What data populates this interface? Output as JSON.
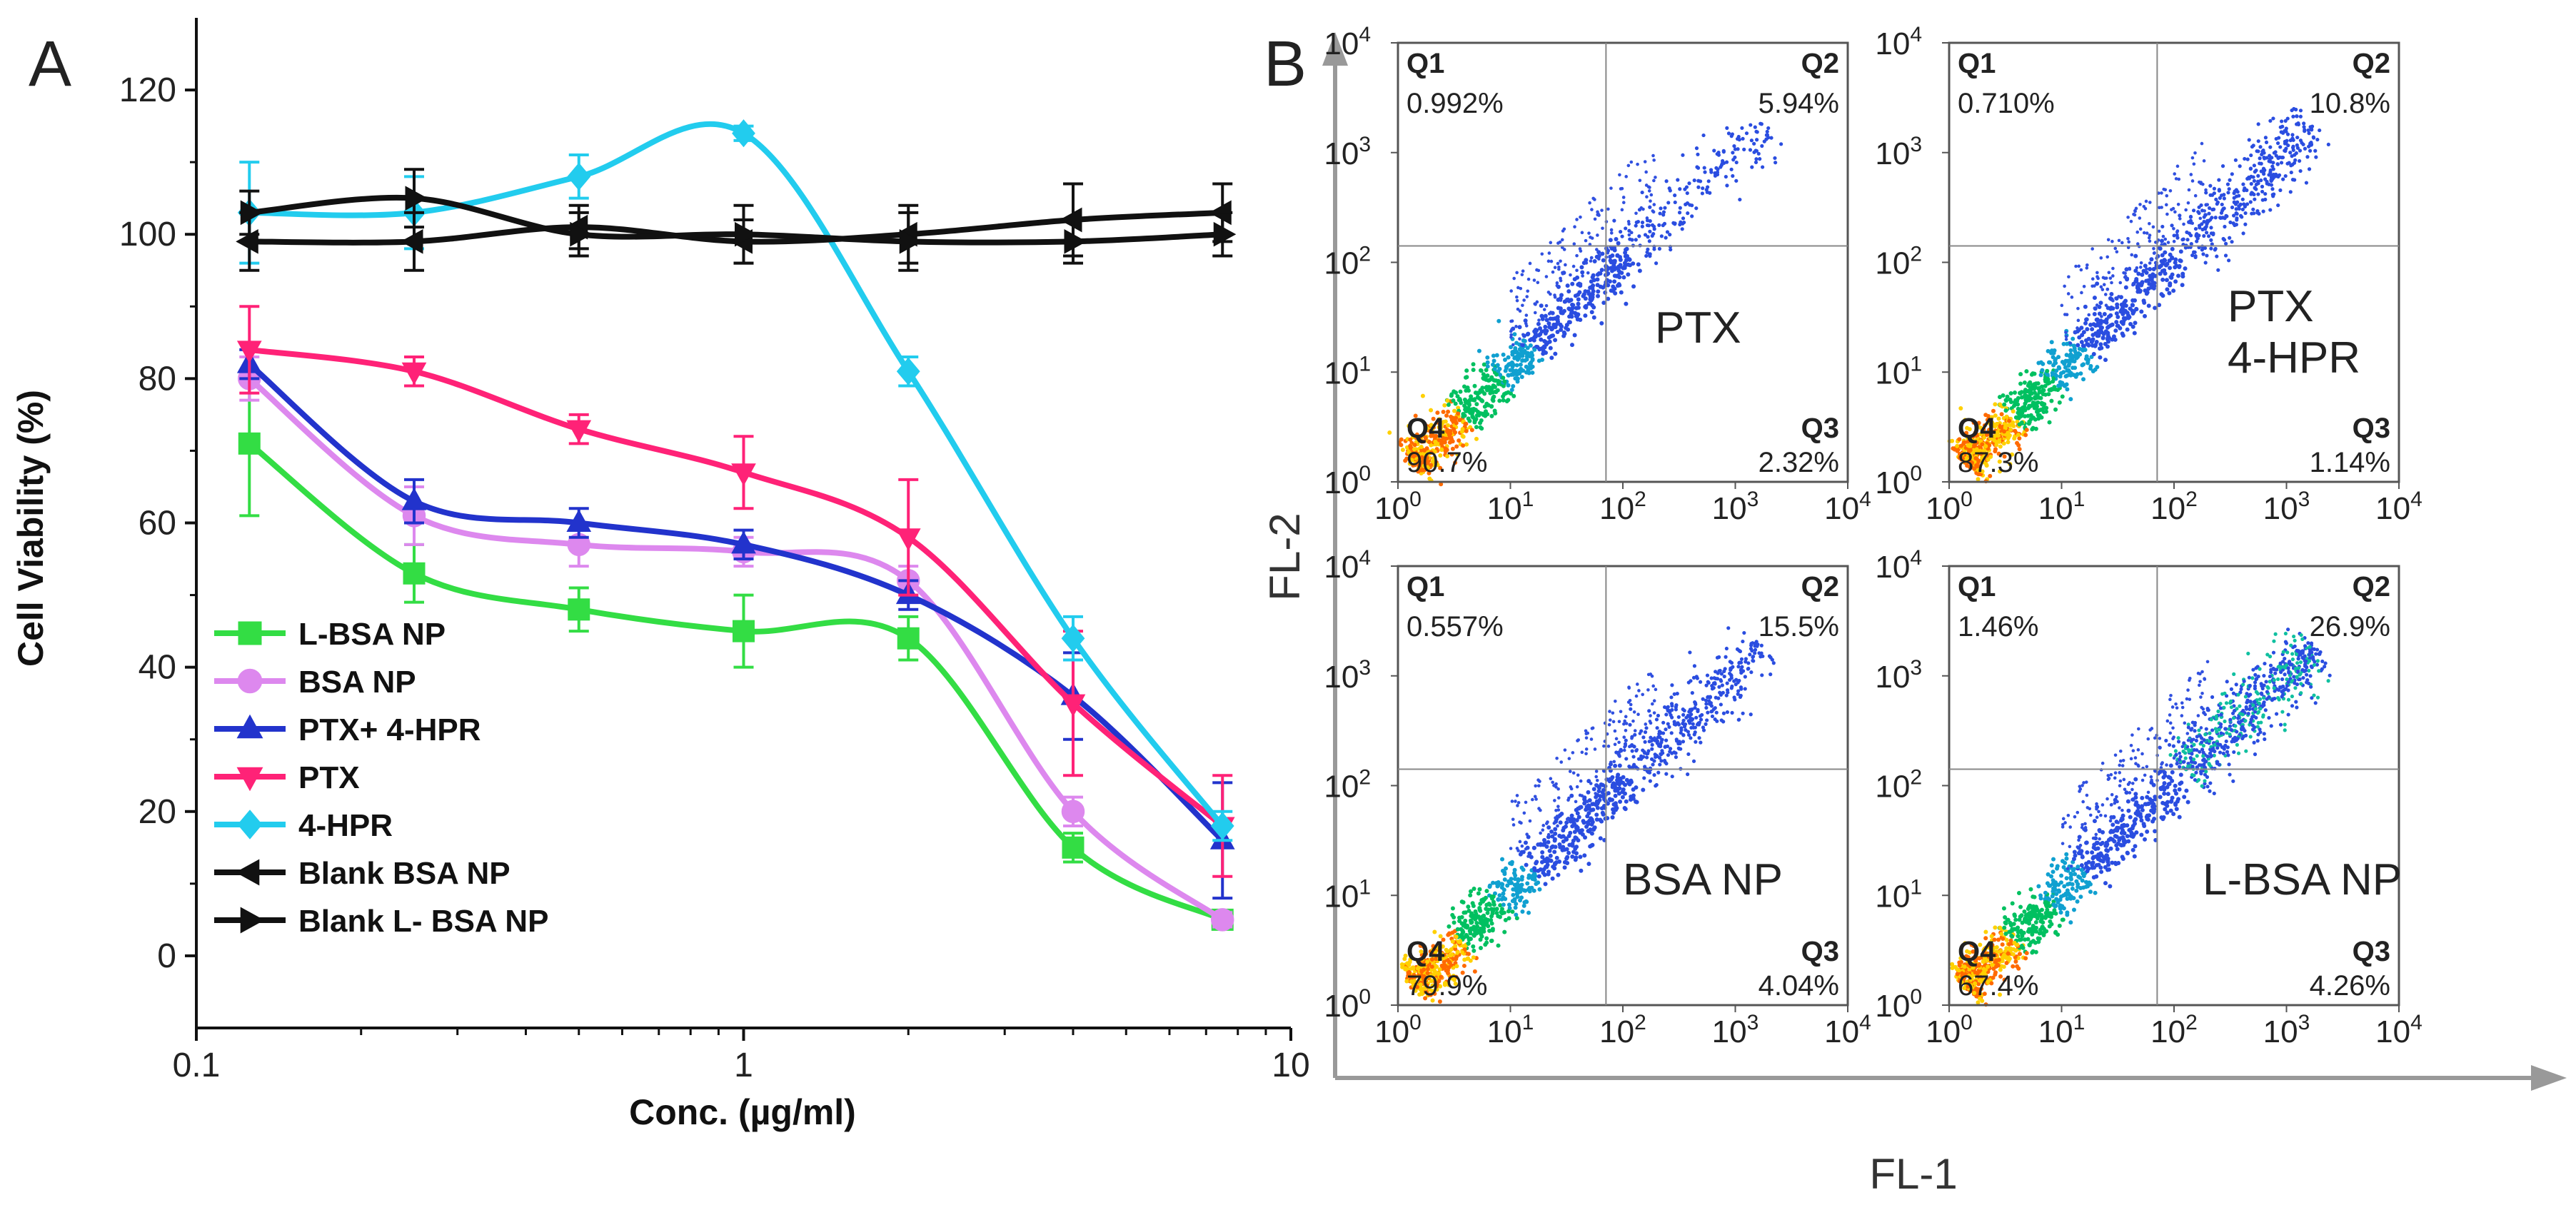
{
  "panelA": {
    "label": "A",
    "chart_data": {
      "type": "line",
      "title": "",
      "xlabel": "Conc. (µg/ml)",
      "ylabel": "Cell Viability (%)",
      "xscale": "log",
      "xlim": [
        0.1,
        10
      ],
      "ylim": [
        -10,
        130
      ],
      "xticks": [
        0.1,
        1,
        10
      ],
      "xtick_labels": [
        "0.1",
        "1",
        "10"
      ],
      "yticks": [
        0,
        20,
        40,
        60,
        80,
        100,
        120
      ],
      "ytick_labels": [
        "0",
        "20",
        "40",
        "60",
        "80",
        "100",
        "120"
      ],
      "legend_position": "bottom-left",
      "x": [
        0.125,
        0.25,
        0.5,
        1,
        2,
        4,
        7.5
      ],
      "series": [
        {
          "name": "L-BSA NP",
          "color": "#33dd44",
          "marker": "square",
          "values": [
            71,
            53,
            48,
            45,
            44,
            15,
            5
          ],
          "errors": [
            10,
            4,
            3,
            5,
            3,
            2,
            1
          ]
        },
        {
          "name": "BSA NP",
          "color": "#dd88ee",
          "marker": "circle",
          "values": [
            80,
            61,
            57,
            56,
            52,
            20,
            5
          ],
          "errors": [
            3,
            4,
            3,
            2,
            2,
            2,
            1
          ]
        },
        {
          "name": "PTX+ 4-HPR",
          "color": "#2233cc",
          "marker": "triangle-up",
          "values": [
            82,
            63,
            60,
            57,
            50,
            36,
            16
          ],
          "errors": [
            2,
            3,
            2,
            2,
            2,
            6,
            8
          ]
        },
        {
          "name": "PTX",
          "color": "#ff2277",
          "marker": "triangle-down",
          "values": [
            84,
            81,
            73,
            67,
            58,
            35,
            18
          ],
          "errors": [
            6,
            2,
            2,
            5,
            8,
            10,
            7
          ]
        },
        {
          "name": "4-HPR",
          "color": "#22ccee",
          "marker": "diamond",
          "values": [
            103,
            103,
            108,
            114,
            81,
            44,
            18
          ],
          "errors": [
            7,
            5,
            3,
            1,
            2,
            3,
            2
          ]
        },
        {
          "name": "Blank BSA NP",
          "color": "#111111",
          "marker": "triangle-left",
          "values": [
            99,
            99,
            101,
            99,
            100,
            102,
            103
          ],
          "errors": [
            4,
            4,
            3,
            3,
            4,
            5,
            4
          ]
        },
        {
          "name": "Blank L- BSA NP",
          "color": "#111111",
          "marker": "triangle-right",
          "values": [
            103,
            105,
            100,
            100,
            99,
            99,
            100
          ],
          "errors": [
            3,
            4,
            3,
            4,
            4,
            3,
            3
          ]
        }
      ]
    }
  },
  "panelB": {
    "label": "B",
    "xlabel": "FL-1",
    "ylabel": "FL-2",
    "tick_base": "10",
    "tick_exponents": [
      "0",
      "1",
      "2",
      "3",
      "4"
    ],
    "quadrant_names": [
      "Q1",
      "Q2",
      "Q3",
      "Q4"
    ],
    "plots": [
      {
        "name": "PTX",
        "name_line2": "",
        "q1": "0.992%",
        "q2": "5.94%",
        "q3": "2.32%",
        "q4": "90.7%",
        "upper_cluster": "small"
      },
      {
        "name": "PTX",
        "name_line2": "4-HPR",
        "q1": "0.710%",
        "q2": "10.8%",
        "q3": "1.14%",
        "q4": "87.3%",
        "upper_cluster": "medium"
      },
      {
        "name": "BSA NP",
        "name_line2": "",
        "q1": "0.557%",
        "q2": "15.5%",
        "q3": "4.04%",
        "q4": "79.9%",
        "upper_cluster": "medium"
      },
      {
        "name": "L-BSA NP",
        "name_line2": "",
        "q1": "1.46%",
        "q2": "26.9%",
        "q3": "4.26%",
        "q4": "67.4%",
        "upper_cluster": "large"
      }
    ]
  }
}
